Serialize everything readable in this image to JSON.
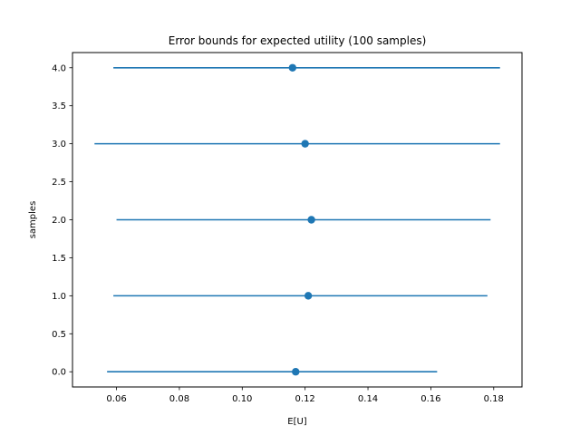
{
  "chart_data": {
    "type": "scatter",
    "title": "Error bounds for expected utility (100 samples)",
    "xlabel": "E[U]",
    "ylabel": "samples",
    "xlim": [
      0.046,
      0.189
    ],
    "ylim": [
      -0.2,
      4.2
    ],
    "xticks": [
      "0.06",
      "0.08",
      "0.10",
      "0.12",
      "0.14",
      "0.16",
      "0.18"
    ],
    "yticks": [
      "0.0",
      "0.5",
      "1.0",
      "1.5",
      "2.0",
      "2.5",
      "3.0",
      "3.5",
      "4.0"
    ],
    "grid": false,
    "color": "#1f77b4",
    "points": [
      {
        "y": 0,
        "x": 0.117,
        "xerr_low": 0.057,
        "xerr_high": 0.162
      },
      {
        "y": 1,
        "x": 0.121,
        "xerr_low": 0.059,
        "xerr_high": 0.178
      },
      {
        "y": 2,
        "x": 0.122,
        "xerr_low": 0.06,
        "xerr_high": 0.179
      },
      {
        "y": 3,
        "x": 0.12,
        "xerr_low": 0.053,
        "xerr_high": 0.182
      },
      {
        "y": 4,
        "x": 0.116,
        "xerr_low": 0.059,
        "xerr_high": 0.182
      }
    ]
  }
}
